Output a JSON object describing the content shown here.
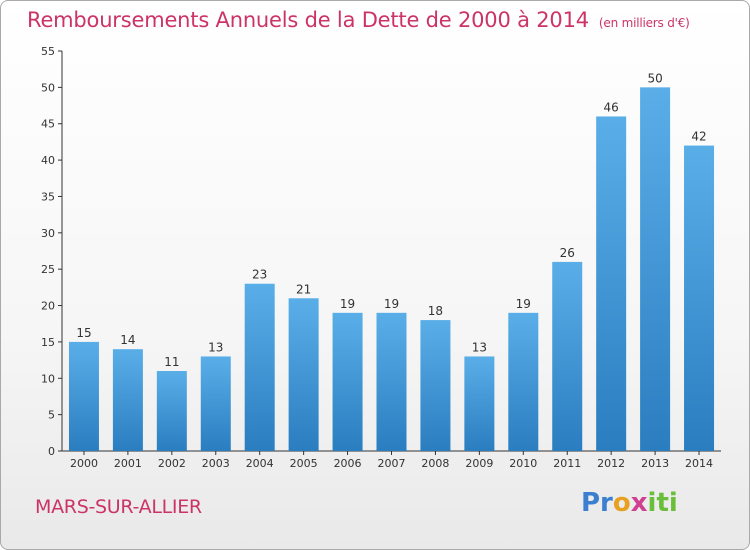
{
  "header": {
    "title": "Remboursements Annuels de la Dette de 2000 à 2014",
    "unit": "(en milliers d'€)"
  },
  "footer": {
    "commune": "MARS-SUR-ALLIER",
    "logo_text": "Proxiti"
  },
  "colors": {
    "title": "#cc3366",
    "bar_top": "#5aaee8",
    "bar_bottom": "#2a7ec0",
    "axis": "#333333"
  },
  "chart_data": {
    "type": "bar",
    "title": "Remboursements Annuels de la Dette de 2000 à 2014",
    "subtitle": "(en milliers d'€)",
    "xlabel": "",
    "ylabel": "",
    "categories": [
      "2000",
      "2001",
      "2002",
      "2003",
      "2004",
      "2005",
      "2006",
      "2007",
      "2008",
      "2009",
      "2010",
      "2011",
      "2012",
      "2013",
      "2014"
    ],
    "values": [
      15,
      14,
      11,
      13,
      23,
      21,
      19,
      19,
      18,
      13,
      19,
      26,
      46,
      50,
      42
    ],
    "ylim": [
      0,
      55
    ],
    "yticks": [
      0,
      5,
      10,
      15,
      20,
      25,
      30,
      35,
      40,
      45,
      50,
      55
    ],
    "grid": false,
    "legend": "none"
  }
}
